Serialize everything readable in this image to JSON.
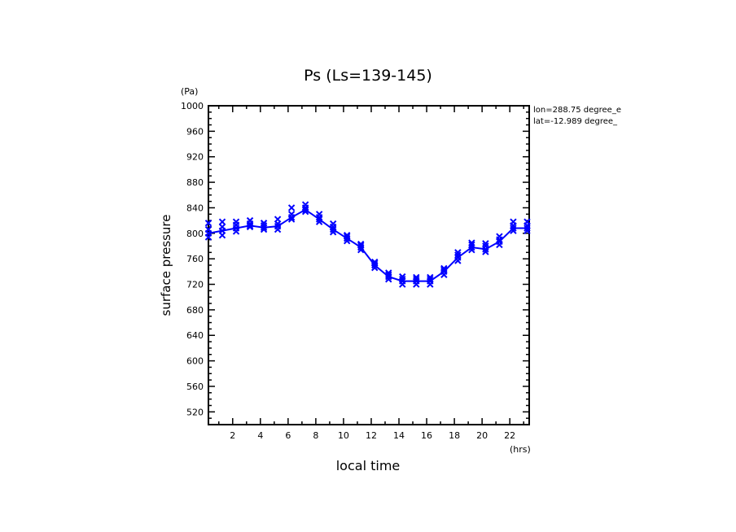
{
  "chart_data": {
    "type": "line",
    "title": "Ps (Ls=139-145)",
    "xlabel": "local time",
    "ylabel": "surface pressure",
    "x_unit": "(hrs)",
    "y_unit": "(Pa)",
    "annotations": [
      "lon=288.75 degree_e",
      "lat=-12.989 degree_"
    ],
    "xlim": [
      0.25,
      23.4
    ],
    "ylim": [
      500,
      1000
    ],
    "x_ticks": [
      2,
      4,
      6,
      8,
      10,
      12,
      14,
      16,
      18,
      20,
      22
    ],
    "y_ticks": [
      520,
      560,
      600,
      640,
      680,
      720,
      760,
      800,
      840,
      880,
      920,
      960,
      1000
    ],
    "grid": false,
    "color": "#0000ff",
    "x": [
      0.25,
      1.25,
      2.25,
      3.25,
      4.25,
      5.25,
      6.25,
      7.25,
      8.25,
      9.25,
      10.25,
      11.25,
      12.25,
      13.25,
      14.25,
      15.25,
      16.25,
      17.25,
      18.25,
      19.25,
      20.25,
      21.25,
      22.25,
      23.25
    ],
    "series": [
      {
        "values": [
          800,
          804,
          808,
          812,
          809,
          811,
          825,
          837,
          822,
          806,
          792,
          778,
          750,
          732,
          725,
          725,
          725,
          740,
          762,
          778,
          775,
          787,
          808,
          808
        ]
      }
    ],
    "scatter_samples": [
      [
        794,
        800,
        806,
        816
      ],
      [
        797,
        804,
        810,
        818
      ],
      [
        803,
        808,
        813,
        818
      ],
      [
        810,
        812,
        815,
        820
      ],
      [
        806,
        809,
        812,
        816
      ],
      [
        806,
        811,
        815,
        822
      ],
      [
        822,
        825,
        830,
        840
      ],
      [
        834,
        837,
        840,
        845
      ],
      [
        818,
        822,
        825,
        830
      ],
      [
        802,
        806,
        810,
        815
      ],
      [
        788,
        792,
        795,
        797
      ],
      [
        774,
        778,
        781,
        783
      ],
      [
        746,
        750,
        753,
        755
      ],
      [
        728,
        732,
        735,
        738
      ],
      [
        720,
        725,
        728,
        732
      ],
      [
        720,
        725,
        728,
        731
      ],
      [
        720,
        725,
        728,
        731
      ],
      [
        735,
        740,
        743,
        745
      ],
      [
        757,
        762,
        766,
        770
      ],
      [
        774,
        778,
        782,
        785
      ],
      [
        771,
        775,
        780,
        784
      ],
      [
        782,
        787,
        790,
        795
      ],
      [
        804,
        808,
        812,
        818
      ],
      [
        804,
        808,
        812,
        818
      ]
    ]
  }
}
